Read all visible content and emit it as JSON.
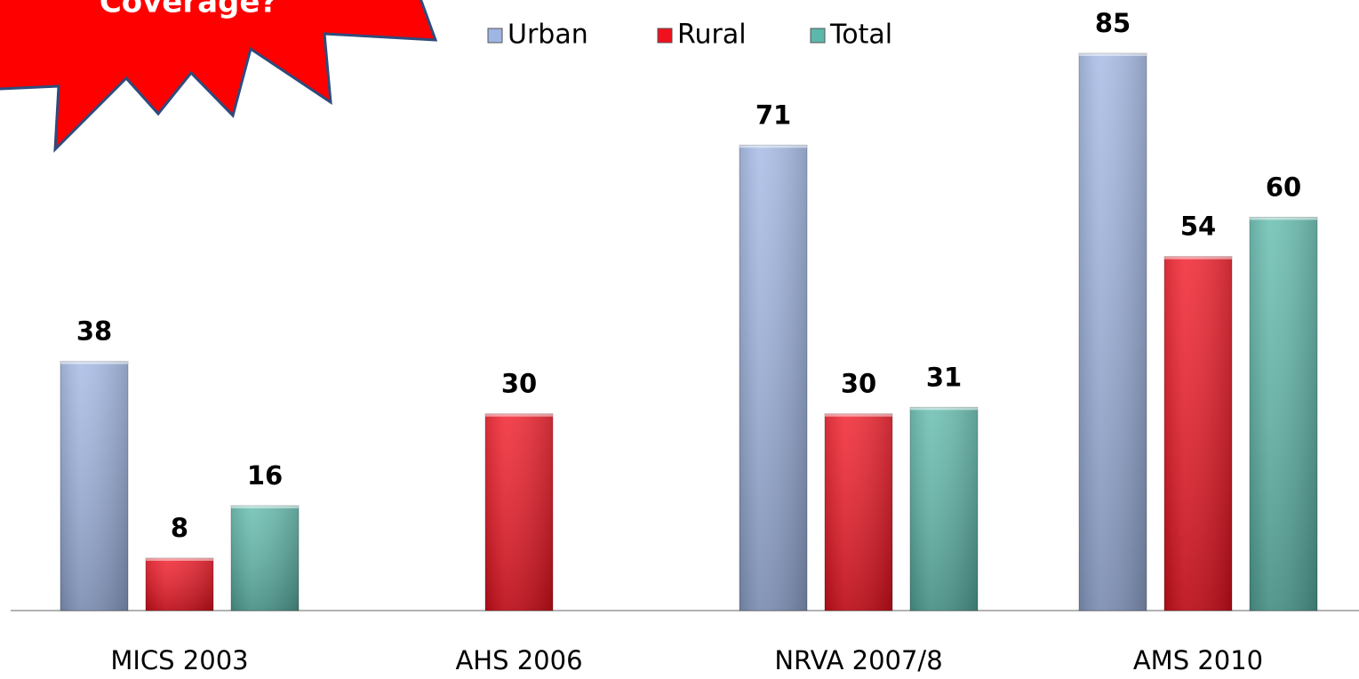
{
  "chart_data": {
    "type": "bar",
    "annotation": "Coverage?",
    "categories": [
      "MICS 2003",
      "AHS 2006",
      "NRVA 2007/8",
      "AMS 2010"
    ],
    "series": [
      {
        "name": "Urban",
        "color": "#9fb5e3",
        "values": [
          38,
          null,
          71,
          85
        ]
      },
      {
        "name": "Rural",
        "color": "#f0101e",
        "values": [
          8,
          30,
          30,
          54
        ]
      },
      {
        "name": "Total",
        "color": "#5cb8aa",
        "values": [
          16,
          null,
          31,
          60
        ]
      }
    ],
    "legend": "top"
  }
}
